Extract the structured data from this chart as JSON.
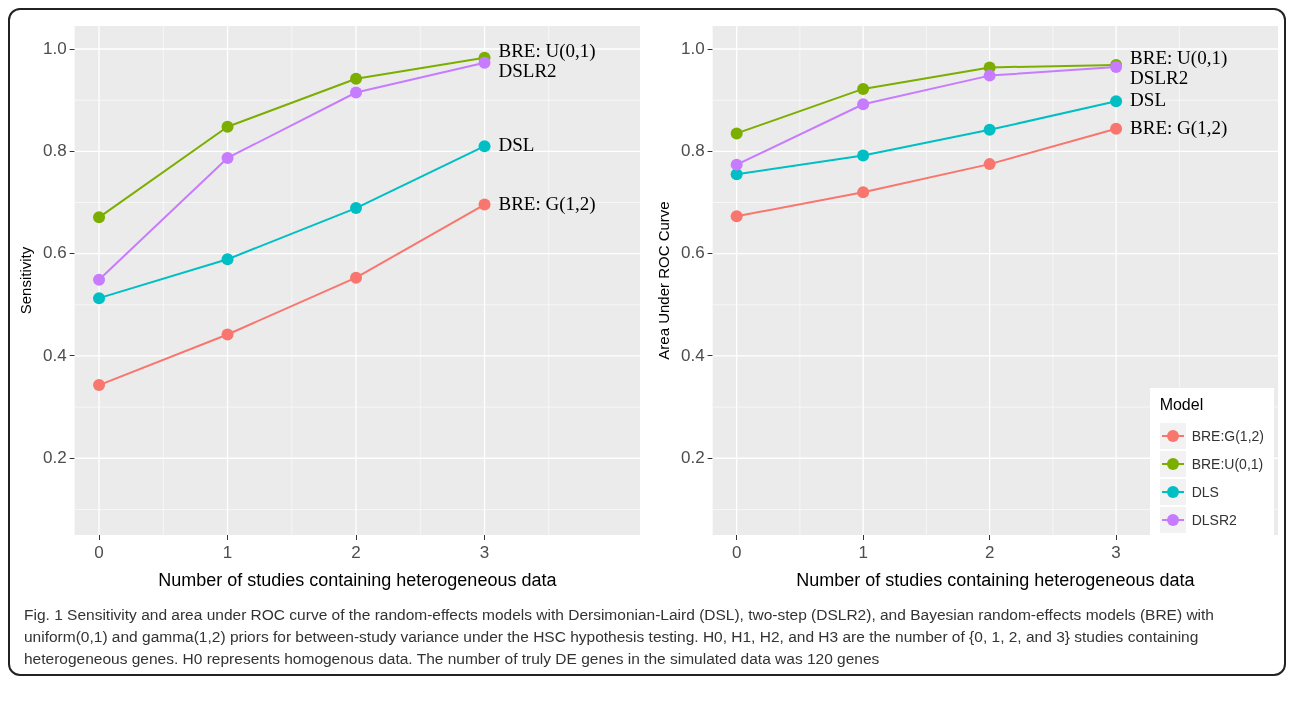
{
  "chart_data": [
    {
      "type": "line",
      "xlabel": "Number of studies containing heterogeneous data",
      "ylabel": "Sensitivity",
      "x": [
        0,
        1,
        2,
        3
      ],
      "xlim": [
        -0.19,
        4.21
      ],
      "xticks": [
        0,
        1,
        2,
        3
      ],
      "ylim": [
        0.05,
        1.045
      ],
      "yticks": [
        0.2,
        0.4,
        0.6,
        0.8,
        {
          "value": 1,
          "label": "1.0"
        }
      ],
      "grid": true,
      "marker": "circle",
      "line_style": "solid",
      "series": [
        {
          "color": "#f8766d",
          "values": [
            0.343,
            0.442,
            0.553,
            0.696
          ]
        },
        {
          "color": "#7cae00",
          "values": [
            0.671,
            0.848,
            0.942,
            0.983
          ]
        },
        {
          "color": "#00bfc4",
          "values": [
            0.513,
            0.589,
            0.689,
            0.81
          ]
        },
        {
          "color": "#c77cff",
          "values": [
            0.549,
            0.787,
            0.915,
            0.973
          ]
        }
      ],
      "annotations": [
        "BRE: U(0,1)",
        "DSLR2",
        "DSL",
        "BRE: G(1,2)"
      ]
    },
    {
      "type": "line",
      "xlabel": "Number of studies containing heterogeneous data",
      "ylabel": "Area Under ROC Curve",
      "x": [
        0,
        1,
        2,
        3
      ],
      "xlim": [
        -0.19,
        4.28
      ],
      "xticks": [
        0,
        1,
        2,
        3
      ],
      "ylim": [
        0.05,
        1.045
      ],
      "yticks": [
        0.2,
        0.4,
        0.6,
        0.8,
        {
          "value": 1,
          "label": "1.0"
        }
      ],
      "grid": true,
      "marker": "circle",
      "line_style": "solid",
      "legend": "bottom right",
      "legend_title": "Model",
      "series": [
        {
          "name": "BRE:G(1,2)",
          "color": "#f8766d",
          "values": [
            0.673,
            0.72,
            0.775,
            0.844
          ]
        },
        {
          "name": "BRE:U(0,1)",
          "color": "#7cae00",
          "values": [
            0.835,
            0.922,
            0.964,
            0.969
          ]
        },
        {
          "name": "DLS",
          "color": "#00bfc4",
          "values": [
            0.755,
            0.792,
            0.842,
            0.898
          ]
        },
        {
          "name": "DLSR2",
          "color": "#c77cff",
          "values": [
            0.774,
            0.892,
            0.948,
            0.965
          ]
        }
      ],
      "annotations": [
        "BRE: U(0,1)",
        "DSLR2",
        "DSL",
        "BRE: G(1,2)"
      ]
    },
    {
      "type": "other",
      "annotations": [
        "Fig. 1 Sensitivity and area under ROC curve of the random-effects models with Dersimonian-Laird (DSL), two-step (DSLR2), and Bayesian random-effects models (BRE) with uniform(0,1) and gamma(1,2) priors for between-study variance under the HSC hypothesis testing. H0, H1, H2, and H3 are the number of {0, 1, 2, and 3} studies containing heterogeneous genes. H0 represents homogenous data. The number of truly DE genes in the simulated data was 120 genes"
      ]
    }
  ]
}
